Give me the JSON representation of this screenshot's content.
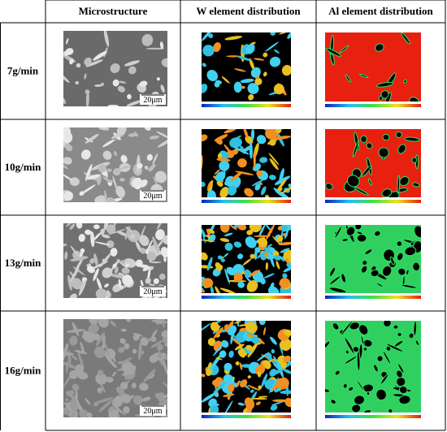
{
  "columns": [
    "Microstructure",
    "W element distribution",
    "Al element distribution"
  ],
  "rows": [
    {
      "label": "7g/min",
      "scale": "20μm"
    },
    {
      "label": "10g/min",
      "scale": "20μm"
    },
    {
      "label": "13g/min",
      "scale": "20μm"
    },
    {
      "label": "16g/min",
      "scale": "20μm"
    }
  ]
}
